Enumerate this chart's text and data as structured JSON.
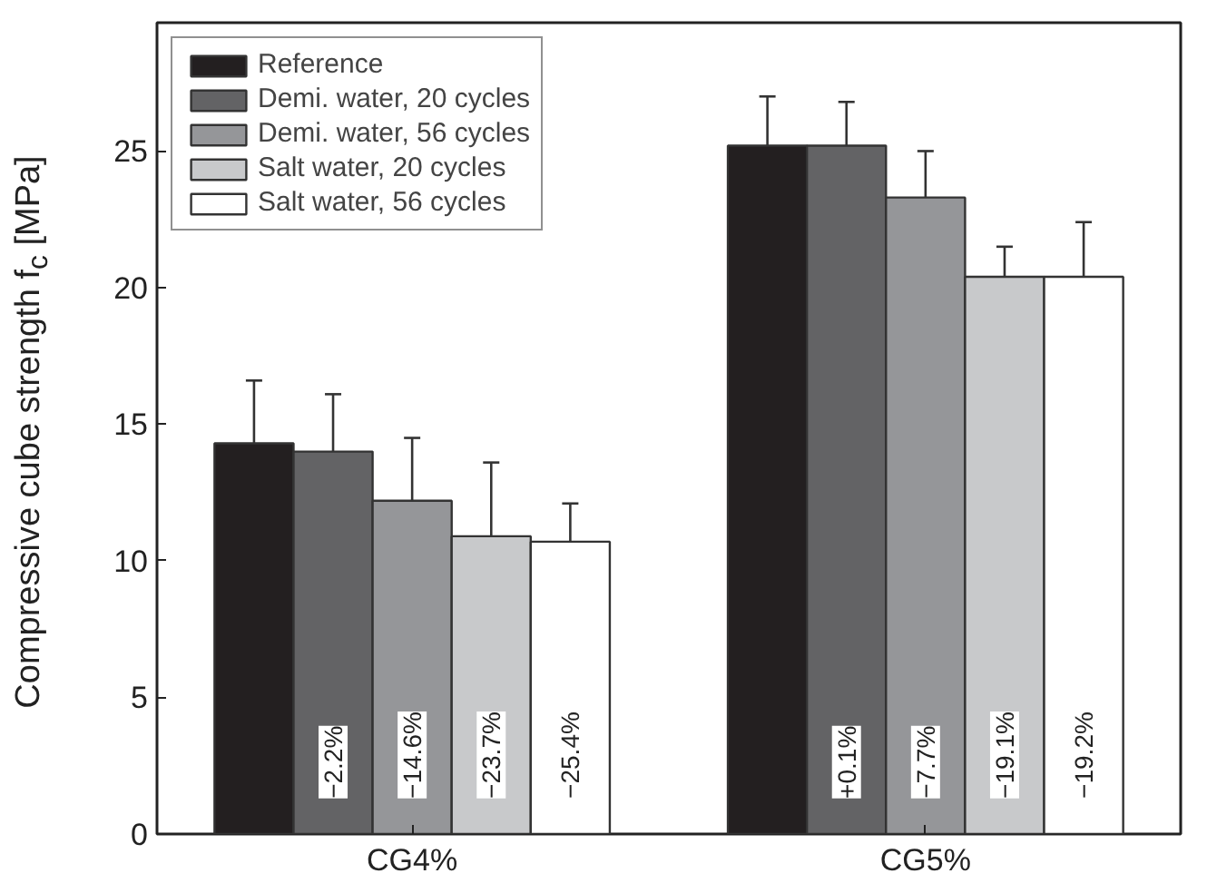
{
  "chart_data": {
    "type": "bar",
    "ylabel": "Compressive cube strength f$_{c}$ [MPa]",
    "categories": [
      "CG4%",
      "CG5%"
    ],
    "series": [
      {
        "name": "Reference",
        "color": "#231f20",
        "values": [
          14.3,
          25.2
        ],
        "errors": [
          2.3,
          1.8
        ]
      },
      {
        "name": "Demi. water, 20 cycles",
        "color": "#636365",
        "values": [
          14.0,
          25.2
        ],
        "errors": [
          2.1,
          1.6
        ]
      },
      {
        "name": "Demi. water, 56 cycles",
        "color": "#959699",
        "values": [
          12.2,
          23.3
        ],
        "errors": [
          2.3,
          1.7
        ]
      },
      {
        "name": "Salt water, 20 cycles",
        "color": "#c8c9cb",
        "values": [
          10.9,
          20.4
        ],
        "errors": [
          2.7,
          1.1
        ]
      },
      {
        "name": "Salt water, 56 cycles",
        "color": "#ffffff",
        "values": [
          10.7,
          20.4
        ],
        "errors": [
          1.4,
          2.0
        ]
      }
    ],
    "annotations": [
      "−2.2%",
      "−14.6%",
      "−23.7%",
      "−25.4%",
      "+0.1%",
      "−7.7%",
      "−19.1%",
      "−19.2%"
    ],
    "ylim": [
      0,
      29.7
    ],
    "yticks": [
      0,
      5,
      10,
      15,
      20,
      25
    ],
    "grid": false,
    "legend": "top left"
  }
}
